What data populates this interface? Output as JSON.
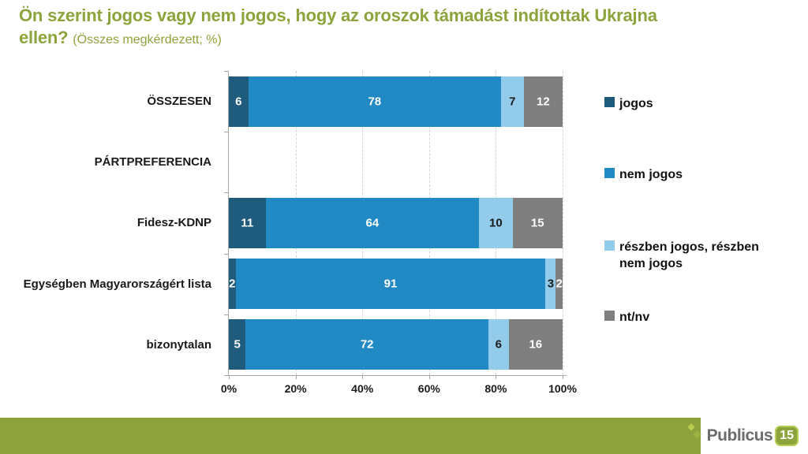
{
  "header": {
    "title_line1": "Ön szerint jogos vagy nem jogos, hogy az oroszok támadást indítottak Ukrajna",
    "title_line2": "ellen?",
    "subtitle": "(Összes megkérdezett; %)",
    "title_color": "#8DA33B"
  },
  "chart_data": {
    "type": "bar",
    "orientation": "horizontal_stacked_100",
    "title": "Ön szerint jogos vagy nem jogos, hogy az oroszok támadást indítottak Ukrajna ellen? (Összes megkérdezett; %)",
    "categories": [
      "ÖSSZESEN",
      "PÁRTPREFERENCIA",
      "Fidesz-KDNP",
      "Egységben Magyarországért lista",
      "bizonytalan"
    ],
    "series": [
      {
        "name": "jogos",
        "color": "#1F5B7D",
        "label_color": "#ffffff",
        "values": [
          6,
          null,
          11,
          2,
          5
        ]
      },
      {
        "name": "nem jogos",
        "color": "#2189C4",
        "label_color": "#ffffff",
        "values": [
          78,
          null,
          64,
          91,
          72
        ]
      },
      {
        "name": "részben jogos, részben nem jogos",
        "legend_lines": [
          "részben jogos, részben",
          "nem jogos"
        ],
        "color": "#93CCEA",
        "label_color": "#1a1a1a",
        "values": [
          7,
          null,
          10,
          3,
          6
        ]
      },
      {
        "name": "nt/nv",
        "color": "#7F7F7F",
        "label_color": "#ffffff",
        "values": [
          12,
          null,
          15,
          2,
          16
        ]
      }
    ],
    "x_ticks": [
      "0%",
      "20%",
      "40%",
      "60%",
      "80%",
      "100%"
    ],
    "xlim": [
      0,
      100
    ],
    "grid": "dashed-vertical",
    "legend_position": "right"
  },
  "footer": {
    "bar_color": "#8DA23C",
    "brand": "Publicus",
    "brand_badge": "15"
  }
}
